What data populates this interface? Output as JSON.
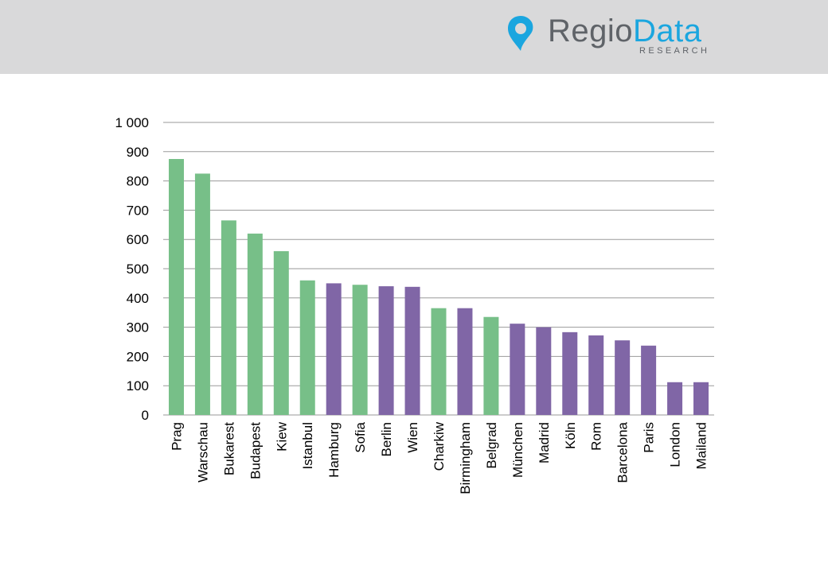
{
  "header": {
    "logo_regio": "Regio",
    "logo_data": "Data",
    "logo_sub": "RESEARCH"
  },
  "colors": {
    "header_bg": "#d9d9da",
    "green": "#77bf88",
    "purple": "#8066a6",
    "grid": "#9a9a9a",
    "logo_blue": "#1ba6df",
    "logo_gray": "#5f6368"
  },
  "chart_data": {
    "type": "bar",
    "title": "",
    "xlabel": "",
    "ylabel": "",
    "ylim": [
      0,
      1000
    ],
    "yticks": [
      0,
      100,
      200,
      300,
      400,
      500,
      600,
      700,
      800,
      900,
      1000
    ],
    "ytick_labels": [
      "0",
      "100",
      "200",
      "300",
      "400",
      "500",
      "600",
      "700",
      "800",
      "900",
      "1 000"
    ],
    "grid": true,
    "legend": "none",
    "x_label_rotation": "vertical",
    "categories": [
      "Prag",
      "Warschau",
      "Bukarest",
      "Budapest",
      "Kiew",
      "Istanbul",
      "Hamburg",
      "Sofia",
      "Berlin",
      "Wien",
      "Charkiw",
      "Birmingham",
      "Belgrad",
      "München",
      "Madrid",
      "Köln",
      "Rom",
      "Barcelona",
      "Paris",
      "London",
      "Mailand"
    ],
    "values": [
      875,
      825,
      665,
      620,
      560,
      460,
      450,
      445,
      440,
      438,
      365,
      365,
      335,
      312,
      300,
      283,
      272,
      255,
      237,
      112,
      112
    ],
    "bar_colors": [
      "green",
      "green",
      "green",
      "green",
      "green",
      "green",
      "purple",
      "green",
      "purple",
      "purple",
      "green",
      "purple",
      "green",
      "purple",
      "purple",
      "purple",
      "purple",
      "purple",
      "purple",
      "purple",
      "purple"
    ]
  }
}
